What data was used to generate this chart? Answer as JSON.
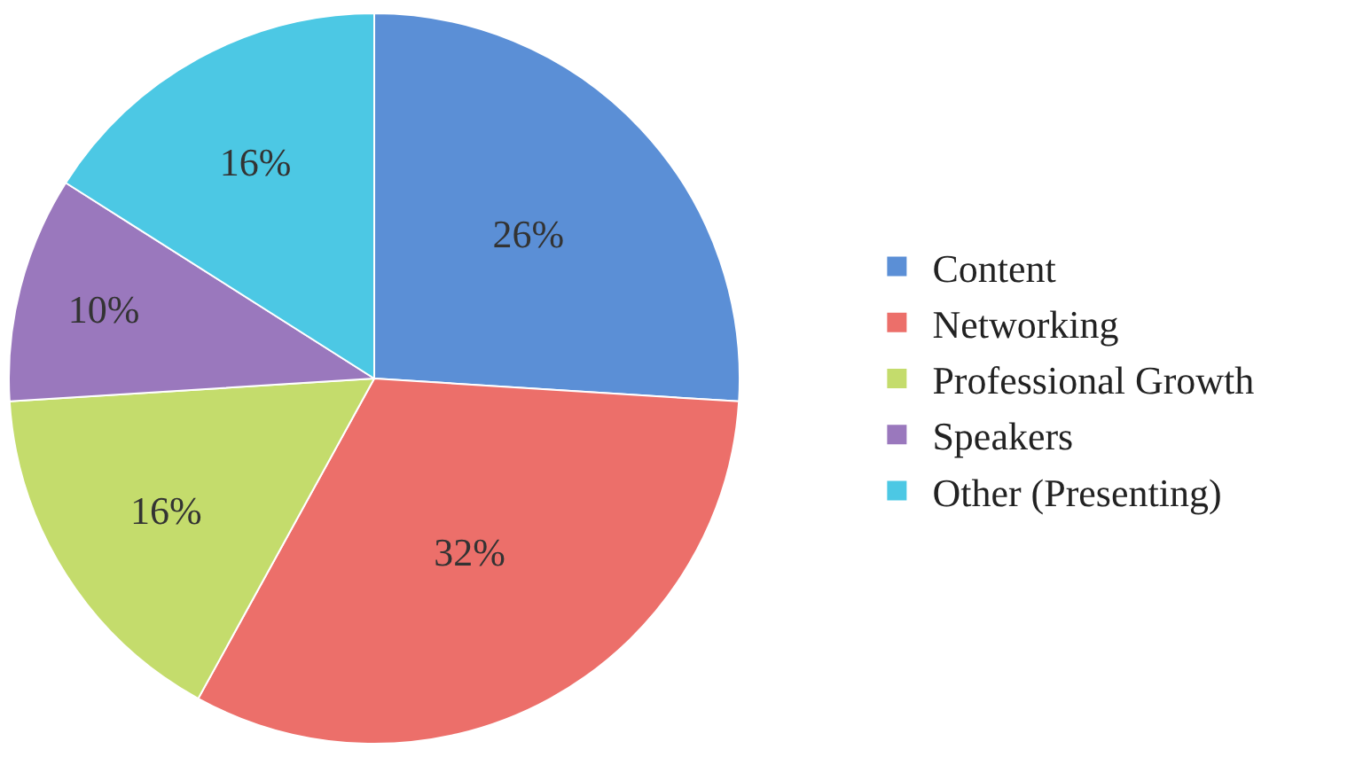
{
  "chart_data": {
    "type": "pie",
    "categories": [
      "Content",
      "Networking",
      "Professional Growth",
      "Speakers",
      "Other (Presenting)"
    ],
    "values": [
      26,
      32,
      16,
      10,
      16
    ],
    "colors": [
      "#5b8fd6",
      "#ec6f6a",
      "#c4dc6c",
      "#9a78bd",
      "#4cc8e4"
    ],
    "value_labels": [
      "26%",
      "32%",
      "16%",
      "10%",
      "16%"
    ],
    "legend": "right"
  }
}
